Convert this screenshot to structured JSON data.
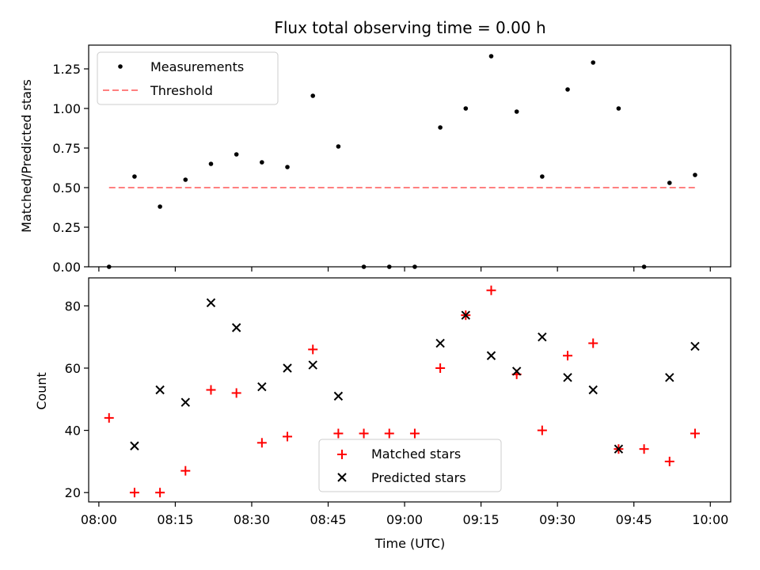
{
  "chart_data": [
    {
      "type": "scatter",
      "title": "Flux total observing time = 0.00 h",
      "ylabel": "Matched/Predicted stars",
      "xlabel": "",
      "ylim": [
        0,
        1.4
      ],
      "xlim": [
        "07:58",
        "10:04"
      ],
      "yticks": [
        "0.00",
        "0.25",
        "0.50",
        "0.75",
        "1.00",
        "1.25"
      ],
      "legend": {
        "position": "top-left",
        "entries": [
          "Measurements",
          "Threshold"
        ]
      },
      "grid": false,
      "series": [
        {
          "name": "Measurements",
          "marker": "dot",
          "color": "#000000",
          "x": [
            "08:02",
            "08:07",
            "08:12",
            "08:17",
            "08:22",
            "08:27",
            "08:32",
            "08:37",
            "08:42",
            "08:47",
            "08:52",
            "08:57",
            "09:02",
            "09:07",
            "09:12",
            "09:17",
            "09:22",
            "09:27",
            "09:32",
            "09:37",
            "09:42",
            "09:47",
            "09:52",
            "09:57"
          ],
          "y": [
            0.0,
            0.57,
            0.38,
            0.55,
            0.65,
            0.71,
            0.66,
            0.63,
            1.08,
            0.76,
            0.0,
            0.0,
            0.0,
            0.88,
            1.0,
            1.33,
            0.98,
            0.57,
            1.12,
            1.29,
            1.0,
            0.0,
            0.53,
            0.58
          ]
        },
        {
          "name": "Threshold",
          "marker": "dashed-line",
          "color": "#ff8080",
          "x": [
            "08:02",
            "09:57"
          ],
          "y": [
            0.5,
            0.5
          ]
        }
      ]
    },
    {
      "type": "scatter",
      "title": "",
      "ylabel": "Count",
      "xlabel": "Time (UTC)",
      "ylim": [
        17,
        89
      ],
      "xlim": [
        "07:58",
        "10:04"
      ],
      "yticks": [
        "20",
        "40",
        "60",
        "80"
      ],
      "xticks": [
        "08:00",
        "08:15",
        "08:30",
        "08:45",
        "09:00",
        "09:15",
        "09:30",
        "09:45",
        "10:00"
      ],
      "legend": {
        "position": "bottom-center",
        "entries": [
          "Matched stars",
          "Predicted stars"
        ]
      },
      "grid": false,
      "series": [
        {
          "name": "Matched stars",
          "marker": "plus",
          "color": "#ff0000",
          "x": [
            "08:02",
            "08:07",
            "08:12",
            "08:17",
            "08:22",
            "08:27",
            "08:32",
            "08:37",
            "08:42",
            "08:47",
            "08:52",
            "08:57",
            "09:02",
            "09:07",
            "09:12",
            "09:17",
            "09:22",
            "09:27",
            "09:32",
            "09:37",
            "09:42",
            "09:47",
            "09:52",
            "09:57"
          ],
          "y": [
            44,
            20,
            20,
            27,
            53,
            52,
            36,
            38,
            66,
            39,
            39,
            39,
            39,
            60,
            77,
            85,
            58,
            40,
            64,
            68,
            34,
            34,
            30,
            39
          ]
        },
        {
          "name": "Predicted stars",
          "marker": "x",
          "color": "#000000",
          "x": [
            "08:07",
            "08:12",
            "08:17",
            "08:22",
            "08:27",
            "08:32",
            "08:37",
            "08:42",
            "08:47",
            "09:07",
            "09:12",
            "09:17",
            "09:22",
            "09:27",
            "09:32",
            "09:37",
            "09:42",
            "09:52",
            "09:57"
          ],
          "y": [
            35,
            53,
            49,
            81,
            73,
            54,
            60,
            61,
            51,
            68,
            77,
            64,
            59,
            70,
            57,
            53,
            34,
            57,
            67
          ]
        }
      ]
    }
  ]
}
